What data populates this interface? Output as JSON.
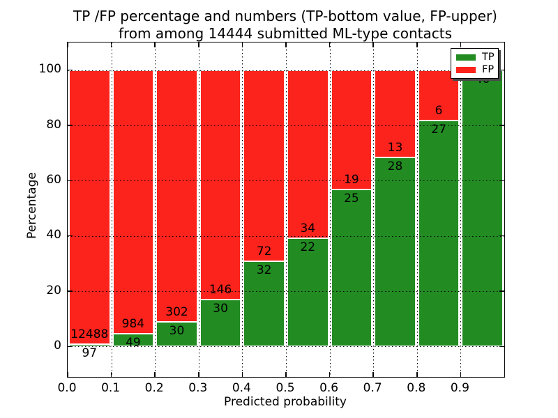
{
  "chart_data": {
    "type": "bar",
    "variant": "stacked-percentage",
    "title_lines": [
      "TP /FP percentage and numbers (TP-bottom value, FP-upper)",
      "from among 14444 submitted ML-type contacts"
    ],
    "xlabel": "Predicted probability",
    "ylabel": "Percentage",
    "total_contacts": 14444,
    "xlim": [
      0.0,
      1.0
    ],
    "ylim": [
      -11,
      110
    ],
    "grid": "dotted",
    "xticks": [
      {
        "value": 0.0,
        "label": "0.0"
      },
      {
        "value": 0.1,
        "label": "0.1"
      },
      {
        "value": 0.2,
        "label": "0.2"
      },
      {
        "value": 0.3,
        "label": "0.3"
      },
      {
        "value": 0.4,
        "label": "0.4"
      },
      {
        "value": 0.5,
        "label": "0.5"
      },
      {
        "value": 0.6,
        "label": "0.6"
      },
      {
        "value": 0.7,
        "label": "0.7"
      },
      {
        "value": 0.8,
        "label": "0.8"
      },
      {
        "value": 0.9,
        "label": "0.9"
      }
    ],
    "yticks": [
      {
        "value": 0,
        "label": "0"
      },
      {
        "value": 20,
        "label": "20"
      },
      {
        "value": 40,
        "label": "40"
      },
      {
        "value": 60,
        "label": "60"
      },
      {
        "value": 80,
        "label": "80"
      },
      {
        "value": 100,
        "label": "100"
      }
    ],
    "colors": {
      "tp": "#228b22",
      "fp": "#fb231c"
    },
    "legend": {
      "position": "upper-right",
      "entries": [
        {
          "label": "TP",
          "series": "tp",
          "color": "#228b22"
        },
        {
          "label": "FP",
          "series": "fp",
          "color": "#fb231c"
        }
      ]
    },
    "bins": [
      {
        "range": [
          0.0,
          0.1
        ],
        "tp": 97,
        "fp": 12488
      },
      {
        "range": [
          0.1,
          0.2
        ],
        "tp": 49,
        "fp": 984
      },
      {
        "range": [
          0.2,
          0.3
        ],
        "tp": 30,
        "fp": 302
      },
      {
        "range": [
          0.3,
          0.4
        ],
        "tp": 30,
        "fp": 146
      },
      {
        "range": [
          0.4,
          0.5
        ],
        "tp": 32,
        "fp": 72
      },
      {
        "range": [
          0.5,
          0.6
        ],
        "tp": 22,
        "fp": 34
      },
      {
        "range": [
          0.6,
          0.7
        ],
        "tp": 25,
        "fp": 19
      },
      {
        "range": [
          0.7,
          0.8
        ],
        "tp": 28,
        "fp": 13
      },
      {
        "range": [
          0.8,
          0.9
        ],
        "tp": 27,
        "fp": 6
      },
      {
        "range": [
          0.9,
          1.0
        ],
        "tp": 40,
        "fp": 0
      }
    ]
  }
}
